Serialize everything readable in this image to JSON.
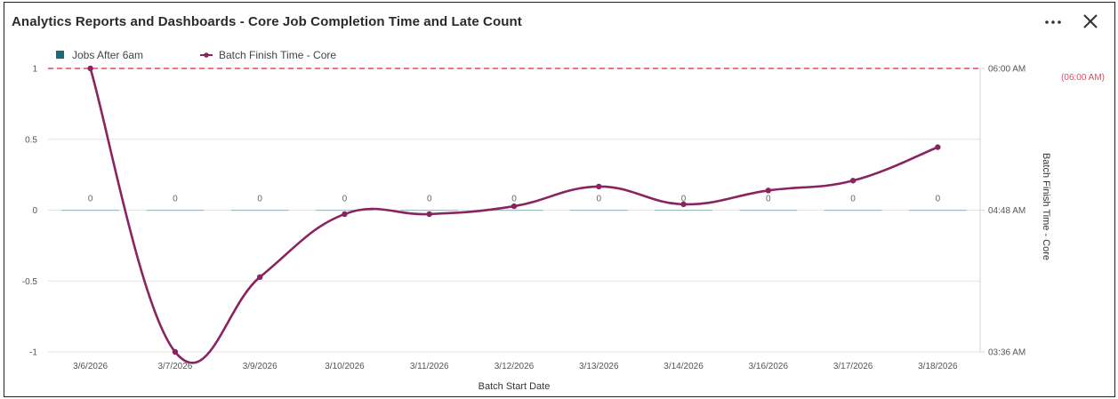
{
  "window": {
    "title": "Analytics Reports and Dashboards - Core Job Completion Time and Late Count",
    "more_icon": "more-horizontal-icon",
    "close_icon": "close-icon"
  },
  "chart_data": {
    "type": "line",
    "title": "",
    "xlabel": "Batch Start Date",
    "ylabel_left": "",
    "ylabel_right": "Batch Finish Time - Core",
    "categories": [
      "3/6/2026",
      "3/7/2026",
      "3/9/2026",
      "3/10/2026",
      "3/11/2026",
      "3/12/2026",
      "3/13/2026",
      "3/14/2026",
      "3/16/2026",
      "3/17/2026",
      "3/18/2026"
    ],
    "left_axis": {
      "ylim": [
        -1,
        1
      ],
      "ticks": [
        "-1",
        "-0.5",
        "0",
        "0.5",
        "1"
      ],
      "tick_values": [
        -1,
        -0.5,
        0,
        0.5,
        1
      ]
    },
    "right_axis": {
      "ylim": [
        "03:36 AM",
        "06:00 AM"
      ],
      "ticks": [
        "03:36 AM",
        "04:48 AM",
        "06:00 AM"
      ]
    },
    "legend_position": "top-left",
    "series": [
      {
        "name": "Jobs After 6am",
        "type": "bar",
        "axis": "left",
        "color": "#1a6b7a",
        "values": [
          0,
          0,
          0,
          0,
          0,
          0,
          0,
          0,
          0,
          0,
          0
        ],
        "data_labels": [
          "0",
          "0",
          "0",
          "0",
          "0",
          "0",
          "0",
          "0",
          "0",
          "0",
          "0"
        ]
      },
      {
        "name": "Batch Finish Time - Core",
        "type": "line",
        "axis": "right",
        "smooth": true,
        "color": "#8a2461",
        "values": [
          "06:00 AM",
          "03:36 AM",
          "04:14 AM",
          "04:46 AM",
          "04:46 AM",
          "04:50 AM",
          "05:00 AM",
          "04:51 AM",
          "04:58 AM",
          "05:03 AM",
          "05:20 AM"
        ]
      }
    ],
    "reference_line": {
      "label": "(06:00 AM)",
      "value": "06:00 AM",
      "color": "#e8475e",
      "style": "dashed"
    },
    "grid": true
  }
}
